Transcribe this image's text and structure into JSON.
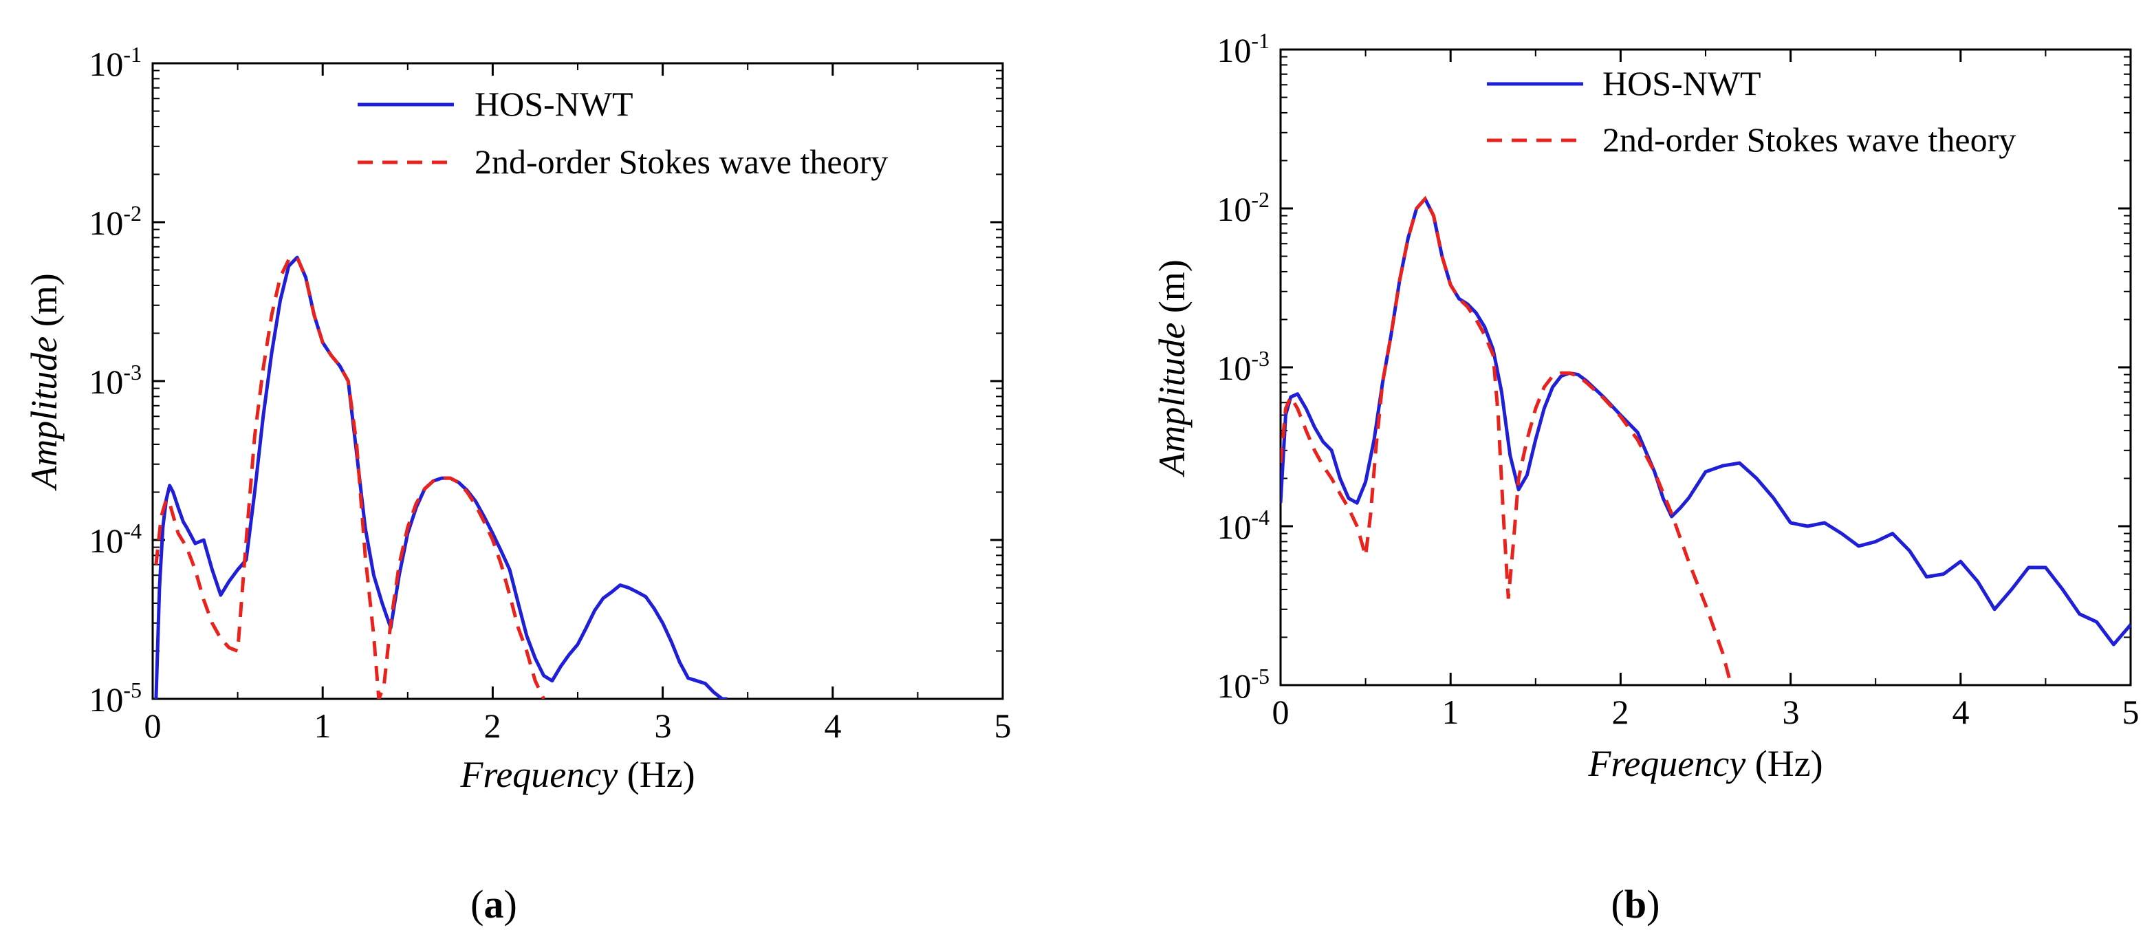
{
  "chart_data": [
    {
      "type": "line",
      "panel_label": "a",
      "xlabel": {
        "italic": "Frequency",
        "unit": "(Hz)"
      },
      "ylabel": {
        "italic": "Amplitude",
        "unit": "(m)"
      },
      "xlim": [
        0,
        5
      ],
      "ylim": [
        1e-05,
        0.1
      ],
      "yscale": "log",
      "xticks": [
        "0",
        "1",
        "2",
        "3",
        "4",
        "5"
      ],
      "yticks": [
        {
          "base": "10",
          "exp": "-5"
        },
        {
          "base": "10",
          "exp": "-4"
        },
        {
          "base": "10",
          "exp": "-3"
        },
        {
          "base": "10",
          "exp": "-2"
        },
        {
          "base": "10",
          "exp": "-1"
        }
      ],
      "legend_position": "top-right",
      "series": [
        {
          "name": "HOS-NWT",
          "color": "#1f1fd8",
          "style": "solid",
          "x": [
            0.02,
            0.04,
            0.06,
            0.08,
            0.1,
            0.12,
            0.15,
            0.18,
            0.2,
            0.25,
            0.3,
            0.35,
            0.4,
            0.45,
            0.5,
            0.55,
            0.6,
            0.65,
            0.7,
            0.75,
            0.8,
            0.85,
            0.9,
            0.95,
            1.0,
            1.05,
            1.1,
            1.15,
            1.2,
            1.25,
            1.3,
            1.35,
            1.4,
            1.45,
            1.5,
            1.55,
            1.6,
            1.65,
            1.7,
            1.75,
            1.8,
            1.85,
            1.9,
            1.95,
            2.0,
            2.05,
            2.1,
            2.15,
            2.2,
            2.25,
            2.3,
            2.35,
            2.4,
            2.45,
            2.5,
            2.55,
            2.6,
            2.65,
            2.7,
            2.75,
            2.8,
            2.85,
            2.9,
            2.95,
            3.0,
            3.05,
            3.1,
            3.15,
            3.2,
            3.25,
            3.3,
            3.35,
            3.38
          ],
          "y": [
            1e-05,
            5e-05,
            0.00012,
            0.00018,
            0.00022,
            0.0002,
            0.00016,
            0.00013,
            0.00012,
            9.5e-05,
            0.0001,
            6.5e-05,
            4.5e-05,
            5.5e-05,
            6.5e-05,
            7.5e-05,
            0.0002,
            0.0006,
            0.0015,
            0.0032,
            0.0053,
            0.006,
            0.0045,
            0.0026,
            0.00175,
            0.00145,
            0.00125,
            0.001,
            0.00035,
            0.00012,
            6e-05,
            4e-05,
            2.8e-05,
            6e-05,
            0.00011,
            0.00016,
            0.00021,
            0.000235,
            0.000245,
            0.000245,
            0.00023,
            0.000205,
            0.000175,
            0.00014,
            0.00011,
            8.5e-05,
            6.5e-05,
            4e-05,
            2.5e-05,
            1.8e-05,
            1.4e-05,
            1.3e-05,
            1.6e-05,
            1.9e-05,
            2.2e-05,
            2.8e-05,
            3.6e-05,
            4.3e-05,
            4.7e-05,
            5.2e-05,
            5e-05,
            4.7e-05,
            4.4e-05,
            3.7e-05,
            3e-05,
            2.3e-05,
            1.7e-05,
            1.35e-05,
            1.3e-05,
            1.25e-05,
            1.1e-05,
            1e-05,
            1e-05
          ]
        },
        {
          "name": "2nd-order Stokes wave theory",
          "color": "#e8221c",
          "style": "dashed",
          "x": [
            0.02,
            0.05,
            0.08,
            0.1,
            0.15,
            0.2,
            0.25,
            0.3,
            0.35,
            0.4,
            0.45,
            0.5,
            0.55,
            0.6,
            0.65,
            0.7,
            0.75,
            0.8,
            0.85,
            0.9,
            0.95,
            1.0,
            1.05,
            1.1,
            1.15,
            1.2,
            1.25,
            1.3,
            1.33,
            1.36,
            1.4,
            1.45,
            1.5,
            1.55,
            1.6,
            1.65,
            1.7,
            1.75,
            1.8,
            1.85,
            1.9,
            1.95,
            2.0,
            2.05,
            2.1,
            2.15,
            2.2,
            2.25,
            2.3
          ],
          "y": [
            7e-05,
            0.00014,
            0.00018,
            0.00017,
            0.00011,
            9e-05,
            6.5e-05,
            4.2e-05,
            3e-05,
            2.4e-05,
            2.1e-05,
            2e-05,
            0.0001,
            0.00045,
            0.0012,
            0.0026,
            0.0045,
            0.0058,
            0.006,
            0.0045,
            0.0026,
            0.00175,
            0.00145,
            0.00125,
            0.001,
            0.0004,
            8e-05,
            2.5e-05,
            1e-05,
            1.2e-05,
            3e-05,
            7e-05,
            0.00012,
            0.00017,
            0.00021,
            0.000235,
            0.000245,
            0.000245,
            0.00023,
            0.0002,
            0.000165,
            0.00013,
            0.0001,
            7e-05,
            4.5e-05,
            2.8e-05,
            2e-05,
            1.3e-05,
            1e-05
          ]
        }
      ]
    },
    {
      "type": "line",
      "panel_label": "b",
      "xlabel": {
        "italic": "Frequency",
        "unit": "(Hz)"
      },
      "ylabel": {
        "italic": "Amplitude",
        "unit": "(m)"
      },
      "xlim": [
        0,
        5
      ],
      "ylim": [
        1e-05,
        0.1
      ],
      "yscale": "log",
      "xticks": [
        "0",
        "1",
        "2",
        "3",
        "4",
        "5"
      ],
      "yticks": [
        {
          "base": "10",
          "exp": "-5"
        },
        {
          "base": "10",
          "exp": "-4"
        },
        {
          "base": "10",
          "exp": "-3"
        },
        {
          "base": "10",
          "exp": "-2"
        },
        {
          "base": "10",
          "exp": "-1"
        }
      ],
      "legend_position": "top-right",
      "series": [
        {
          "name": "HOS-NWT",
          "color": "#1f1fd8",
          "style": "solid",
          "x": [
            0.0,
            0.03,
            0.06,
            0.1,
            0.15,
            0.2,
            0.25,
            0.3,
            0.35,
            0.4,
            0.45,
            0.5,
            0.55,
            0.6,
            0.65,
            0.7,
            0.75,
            0.8,
            0.85,
            0.9,
            0.95,
            1.0,
            1.05,
            1.1,
            1.15,
            1.2,
            1.25,
            1.3,
            1.35,
            1.4,
            1.45,
            1.5,
            1.55,
            1.6,
            1.65,
            1.7,
            1.75,
            1.8,
            1.9,
            2.0,
            2.1,
            2.2,
            2.25,
            2.3,
            2.35,
            2.4,
            2.5,
            2.6,
            2.7,
            2.8,
            2.9,
            3.0,
            3.1,
            3.2,
            3.3,
            3.4,
            3.5,
            3.6,
            3.7,
            3.8,
            3.9,
            4.0,
            4.1,
            4.2,
            4.3,
            4.4,
            4.5,
            4.6,
            4.7,
            4.8,
            4.9,
            5.0
          ],
          "y": [
            0.00014,
            0.0005,
            0.00065,
            0.00068,
            0.00055,
            0.00042,
            0.00034,
            0.0003,
            0.0002,
            0.00015,
            0.00014,
            0.00019,
            0.00035,
            0.0008,
            0.0016,
            0.0035,
            0.0065,
            0.01,
            0.0115,
            0.009,
            0.005,
            0.0033,
            0.0027,
            0.0025,
            0.0022,
            0.0018,
            0.0013,
            0.0007,
            0.00028,
            0.00017,
            0.00021,
            0.00035,
            0.00055,
            0.00075,
            0.00088,
            0.00092,
            0.0009,
            0.00082,
            0.00065,
            0.0005,
            0.00039,
            0.00022,
            0.00015,
            0.000115,
            0.00013,
            0.00015,
            0.00022,
            0.00024,
            0.00025,
            0.0002,
            0.00015,
            0.000105,
            0.0001,
            0.000105,
            9e-05,
            7.5e-05,
            8e-05,
            9e-05,
            7e-05,
            4.8e-05,
            5e-05,
            6e-05,
            4.5e-05,
            3e-05,
            4e-05,
            5.5e-05,
            5.5e-05,
            4e-05,
            2.8e-05,
            2.5e-05,
            1.8e-05,
            2.4e-05
          ]
        },
        {
          "name": "2nd-order Stokes wave theory",
          "color": "#e8221c",
          "style": "dashed",
          "x": [
            0.0,
            0.03,
            0.06,
            0.1,
            0.15,
            0.2,
            0.25,
            0.3,
            0.35,
            0.4,
            0.45,
            0.5,
            0.53,
            0.56,
            0.6,
            0.65,
            0.7,
            0.75,
            0.8,
            0.85,
            0.9,
            0.95,
            1.0,
            1.05,
            1.1,
            1.15,
            1.2,
            1.25,
            1.28,
            1.31,
            1.34,
            1.37,
            1.4,
            1.45,
            1.5,
            1.55,
            1.6,
            1.65,
            1.7,
            1.75,
            1.8,
            1.9,
            2.0,
            2.1,
            2.2,
            2.3,
            2.4,
            2.5,
            2.6,
            2.65
          ],
          "y": [
            0.00025,
            0.00055,
            0.00065,
            0.00055,
            0.0004,
            0.0003,
            0.00024,
            0.0002,
            0.00016,
            0.00013,
            0.0001,
            6.5e-05,
            0.00012,
            0.0003,
            0.0008,
            0.0016,
            0.0035,
            0.0065,
            0.01,
            0.0115,
            0.009,
            0.005,
            0.0033,
            0.0027,
            0.0024,
            0.002,
            0.0016,
            0.0012,
            0.0005,
            0.00012,
            3.5e-05,
            8e-05,
            0.0002,
            0.00035,
            0.00055,
            0.00075,
            0.00088,
            0.00092,
            0.00092,
            0.00088,
            0.0008,
            0.00064,
            0.00049,
            0.00035,
            0.00022,
            0.00012,
            6e-05,
            3.2e-05,
            1.6e-05,
            1e-05
          ]
        }
      ]
    }
  ]
}
